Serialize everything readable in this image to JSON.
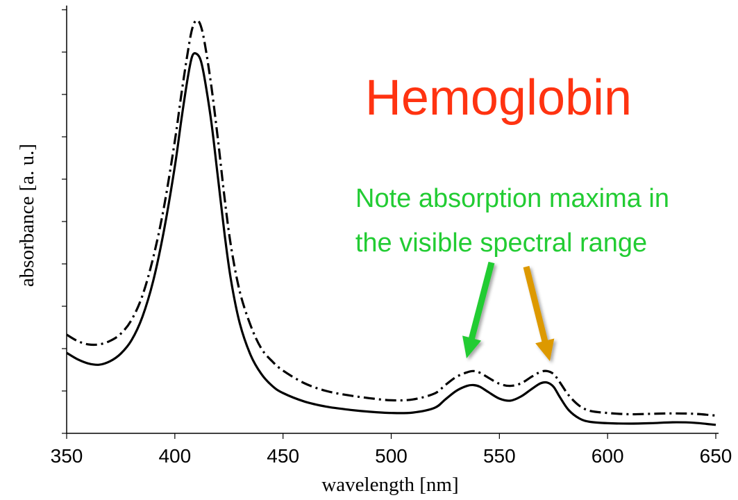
{
  "chart_data": {
    "type": "line",
    "title": "Hemoglobin",
    "xlabel": "wavelength [nm]",
    "ylabel": "absorbance [a. u.]",
    "xlim": [
      350,
      650
    ],
    "ylim": [
      0,
      1
    ],
    "x_ticks": [
      350,
      400,
      450,
      500,
      550,
      600,
      650
    ],
    "y_ticks_labeled": false,
    "y_tick_count": 11,
    "grid": false,
    "series": [
      {
        "style": "solid",
        "color": "#000000",
        "points": [
          [
            350,
            0.19
          ],
          [
            355,
            0.175
          ],
          [
            360,
            0.165
          ],
          [
            365,
            0.162
          ],
          [
            370,
            0.17
          ],
          [
            375,
            0.188
          ],
          [
            380,
            0.22
          ],
          [
            385,
            0.275
          ],
          [
            390,
            0.36
          ],
          [
            395,
            0.48
          ],
          [
            400,
            0.63
          ],
          [
            403,
            0.74
          ],
          [
            406,
            0.84
          ],
          [
            408,
            0.89
          ],
          [
            410,
            0.896
          ],
          [
            412,
            0.88
          ],
          [
            414,
            0.83
          ],
          [
            417,
            0.73
          ],
          [
            420,
            0.6
          ],
          [
            423,
            0.47
          ],
          [
            426,
            0.36
          ],
          [
            430,
            0.26
          ],
          [
            435,
            0.185
          ],
          [
            440,
            0.14
          ],
          [
            445,
            0.112
          ],
          [
            450,
            0.095
          ],
          [
            460,
            0.075
          ],
          [
            470,
            0.063
          ],
          [
            480,
            0.056
          ],
          [
            490,
            0.051
          ],
          [
            500,
            0.048
          ],
          [
            510,
            0.049
          ],
          [
            520,
            0.06
          ],
          [
            525,
            0.08
          ],
          [
            530,
            0.1
          ],
          [
            535,
            0.112
          ],
          [
            538,
            0.114
          ],
          [
            541,
            0.11
          ],
          [
            545,
            0.097
          ],
          [
            550,
            0.082
          ],
          [
            555,
            0.077
          ],
          [
            560,
            0.087
          ],
          [
            565,
            0.105
          ],
          [
            569,
            0.118
          ],
          [
            572,
            0.12
          ],
          [
            575,
            0.11
          ],
          [
            578,
            0.085
          ],
          [
            582,
            0.055
          ],
          [
            587,
            0.035
          ],
          [
            592,
            0.027
          ],
          [
            600,
            0.024
          ],
          [
            610,
            0.023
          ],
          [
            620,
            0.024
          ],
          [
            630,
            0.026
          ],
          [
            640,
            0.025
          ],
          [
            650,
            0.02
          ]
        ]
      },
      {
        "style": "dash-dot",
        "color": "#000000",
        "points": [
          [
            350,
            0.233
          ],
          [
            355,
            0.218
          ],
          [
            360,
            0.21
          ],
          [
            365,
            0.21
          ],
          [
            370,
            0.218
          ],
          [
            375,
            0.235
          ],
          [
            380,
            0.268
          ],
          [
            385,
            0.325
          ],
          [
            390,
            0.415
          ],
          [
            395,
            0.535
          ],
          [
            400,
            0.69
          ],
          [
            403,
            0.8
          ],
          [
            406,
            0.9
          ],
          [
            408,
            0.955
          ],
          [
            410,
            0.975
          ],
          [
            412,
            0.962
          ],
          [
            414,
            0.915
          ],
          [
            417,
            0.815
          ],
          [
            420,
            0.69
          ],
          [
            423,
            0.555
          ],
          [
            426,
            0.44
          ],
          [
            430,
            0.335
          ],
          [
            435,
            0.255
          ],
          [
            440,
            0.2
          ],
          [
            445,
            0.17
          ],
          [
            450,
            0.148
          ],
          [
            460,
            0.118
          ],
          [
            470,
            0.1
          ],
          [
            480,
            0.09
          ],
          [
            490,
            0.083
          ],
          [
            500,
            0.078
          ],
          [
            510,
            0.08
          ],
          [
            520,
            0.094
          ],
          [
            525,
            0.114
          ],
          [
            530,
            0.133
          ],
          [
            535,
            0.144
          ],
          [
            538,
            0.147
          ],
          [
            541,
            0.143
          ],
          [
            545,
            0.131
          ],
          [
            550,
            0.117
          ],
          [
            555,
            0.112
          ],
          [
            560,
            0.118
          ],
          [
            565,
            0.134
          ],
          [
            569,
            0.145
          ],
          [
            572,
            0.147
          ],
          [
            575,
            0.14
          ],
          [
            578,
            0.12
          ],
          [
            582,
            0.09
          ],
          [
            587,
            0.065
          ],
          [
            592,
            0.053
          ],
          [
            600,
            0.048
          ],
          [
            610,
            0.045
          ],
          [
            620,
            0.046
          ],
          [
            630,
            0.047
          ],
          [
            640,
            0.046
          ],
          [
            650,
            0.042
          ]
        ]
      }
    ],
    "annotation": {
      "text_lines": [
        "Note absorption maxima in",
        "the visible spectral range"
      ],
      "color": "#22cc33"
    },
    "arrows": [
      {
        "color": "#22cc33",
        "points_to_x": 536
      },
      {
        "color": "#dd9900",
        "points_to_x": 572
      }
    ],
    "title_color": "#ff3311"
  }
}
